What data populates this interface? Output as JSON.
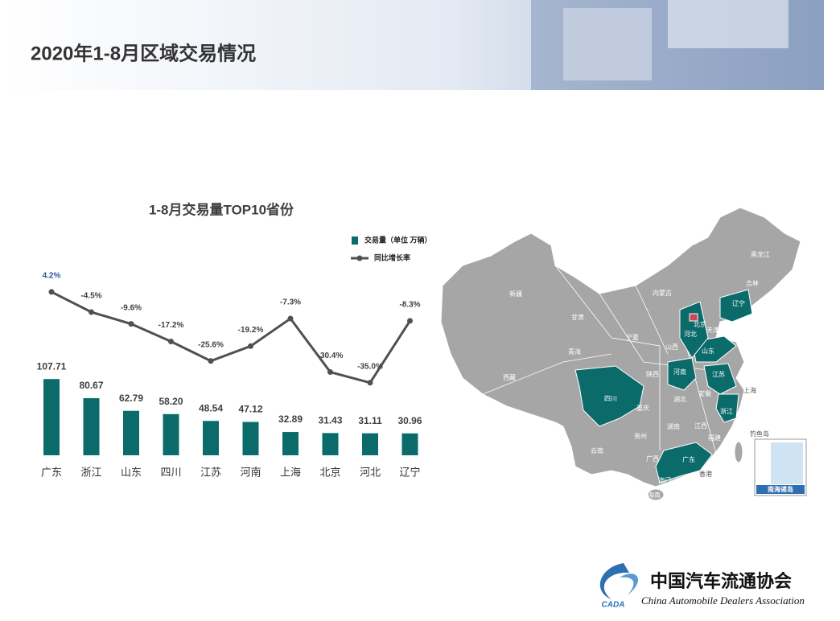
{
  "page": {
    "title": "2020年1-8月区域交易情况"
  },
  "chart_data": {
    "type": "bar-line",
    "title": "1-8月交易量TOP10省份",
    "categories": [
      "广东",
      "浙江",
      "山东",
      "四川",
      "江苏",
      "河南",
      "上海",
      "北京",
      "河北",
      "辽宁"
    ],
    "series": [
      {
        "name": "交易量（单位 万辆）",
        "type": "bar",
        "color": "#0b6b6b",
        "values": [
          107.71,
          80.67,
          62.79,
          58.2,
          48.54,
          47.12,
          32.89,
          31.43,
          31.11,
          30.96
        ],
        "value_labels": [
          "107.71",
          "80.67",
          "62.79",
          "58.20",
          "48.54",
          "47.12",
          "32.89",
          "31.43",
          "31.11",
          "30.96"
        ]
      },
      {
        "name": "同比增长率",
        "type": "line",
        "color": "#505050",
        "values": [
          4.2,
          -4.5,
          -9.6,
          -17.2,
          -25.6,
          -19.2,
          -7.3,
          -30.4,
          -35.0,
          -8.3
        ],
        "value_labels": [
          "4.2%",
          "-4.5%",
          "-9.6%",
          "-17.2%",
          "-25.6%",
          "-19.2%",
          "-7.3%",
          "-30.4%",
          "-35.0%",
          "-8.3%"
        ]
      }
    ]
  },
  "map": {
    "labels": [
      "新疆",
      "西藏",
      "青海",
      "甘肃",
      "内蒙古",
      "黑龙江",
      "吉林",
      "辽宁",
      "北京",
      "天津",
      "河北",
      "山西",
      "山东",
      "河南",
      "江苏",
      "上海",
      "安徽",
      "湖北",
      "陕西",
      "宁夏",
      "四川",
      "重庆",
      "浙江",
      "贵州",
      "湖南",
      "江西",
      "福建",
      "云南",
      "广西",
      "广东",
      "香港",
      "澳门",
      "海南",
      "钓鱼岛",
      "南海诸岛"
    ]
  },
  "footer": {
    "logo": "CADA",
    "name": "中国汽车流通协会",
    "name_en": "China Automobile Dealers Association"
  }
}
